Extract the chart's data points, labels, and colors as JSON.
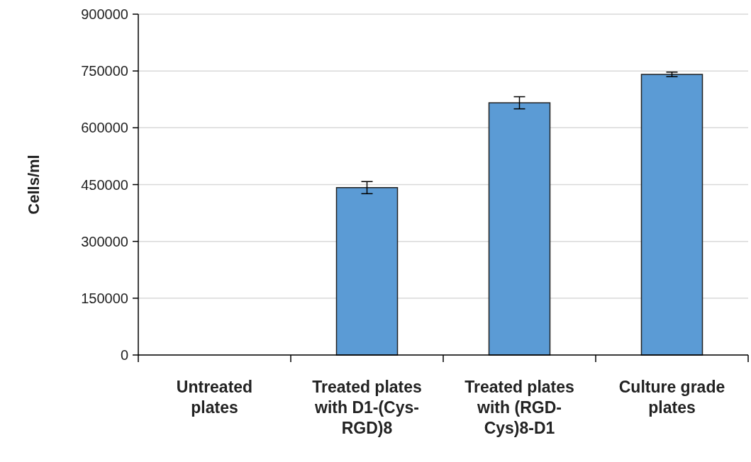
{
  "chart_data": {
    "type": "bar",
    "ylabel": "Cells/ml",
    "categories": [
      "Untreated plates",
      "Treated plates with D1-(Cys-RGD)8",
      "Treated plates with (RGD-Cys)8-D1",
      "Culture grade plates"
    ],
    "values": [
      0,
      442000,
      666000,
      741000
    ],
    "errors": [
      null,
      16000,
      16000,
      6000
    ],
    "color": "#5b9bd5",
    "ylim": [
      0,
      900000
    ],
    "yticks": [
      0,
      150000,
      300000,
      450000,
      600000,
      750000,
      900000
    ],
    "grid": "y"
  }
}
